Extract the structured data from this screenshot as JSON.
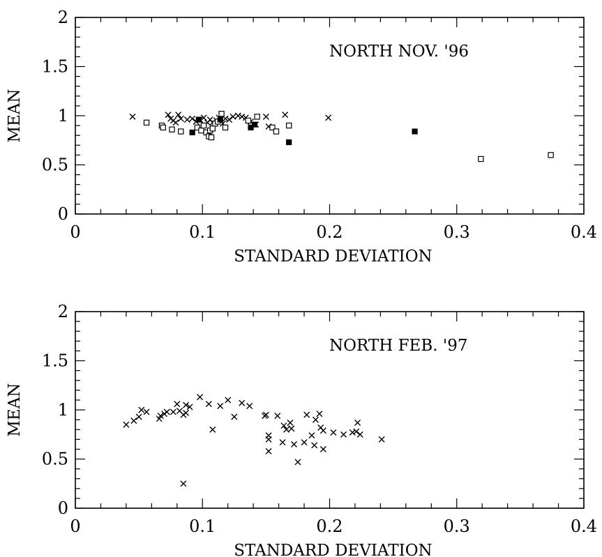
{
  "chart_data": [
    {
      "type": "scatter",
      "annotation": "NORTH NOV. '96",
      "xlabel": "STANDARD DEVIATION",
      "ylabel": "MEAN",
      "xlim": [
        0,
        0.4
      ],
      "ylim": [
        0,
        2
      ],
      "xticks": [
        "0",
        "0.1",
        "0.2",
        "0.3",
        "0.4"
      ],
      "yticks": [
        "0",
        "0.5",
        "1",
        "1.5",
        "2"
      ],
      "grid": false,
      "series": [
        {
          "marker": "cross",
          "points": [
            [
              0.045,
              0.99
            ],
            [
              0.073,
              1.01
            ],
            [
              0.075,
              0.97
            ],
            [
              0.077,
              0.95
            ],
            [
              0.079,
              0.93
            ],
            [
              0.081,
              1.01
            ],
            [
              0.083,
              0.97
            ],
            [
              0.088,
              0.96
            ],
            [
              0.092,
              0.97
            ],
            [
              0.095,
              0.94
            ],
            [
              0.098,
              0.96
            ],
            [
              0.101,
              0.98
            ],
            [
              0.104,
              0.93
            ],
            [
              0.106,
              0.96
            ],
            [
              0.108,
              0.93
            ],
            [
              0.111,
              0.95
            ],
            [
              0.113,
              0.98
            ],
            [
              0.116,
              0.92
            ],
            [
              0.118,
              0.97
            ],
            [
              0.121,
              0.96
            ],
            [
              0.124,
              0.99
            ],
            [
              0.128,
              1.0
            ],
            [
              0.131,
              0.99
            ],
            [
              0.134,
              0.98
            ],
            [
              0.138,
              0.94
            ],
            [
              0.142,
              0.91
            ],
            [
              0.15,
              0.99
            ],
            [
              0.152,
              0.89
            ],
            [
              0.165,
              1.01
            ],
            [
              0.199,
              0.98
            ]
          ]
        },
        {
          "marker": "open-square",
          "points": [
            [
              0.056,
              0.93
            ],
            [
              0.068,
              0.9
            ],
            [
              0.069,
              0.88
            ],
            [
              0.076,
              0.86
            ],
            [
              0.083,
              0.84
            ],
            [
              0.096,
              0.88
            ],
            [
              0.099,
              0.85
            ],
            [
              0.101,
              0.9
            ],
            [
              0.103,
              0.83
            ],
            [
              0.105,
              0.79
            ],
            [
              0.106,
              0.85
            ],
            [
              0.107,
              0.78
            ],
            [
              0.108,
              0.87
            ],
            [
              0.11,
              0.92
            ],
            [
              0.112,
              0.94
            ],
            [
              0.115,
              1.02
            ],
            [
              0.118,
              0.88
            ],
            [
              0.136,
              0.95
            ],
            [
              0.143,
              0.99
            ],
            [
              0.155,
              0.88
            ],
            [
              0.158,
              0.84
            ],
            [
              0.168,
              0.9
            ],
            [
              0.319,
              0.56
            ],
            [
              0.374,
              0.6
            ]
          ]
        },
        {
          "marker": "filled-square",
          "points": [
            [
              0.092,
              0.83
            ],
            [
              0.097,
              0.96
            ],
            [
              0.114,
              0.96
            ],
            [
              0.138,
              0.88
            ],
            [
              0.141,
              0.91
            ],
            [
              0.168,
              0.73
            ],
            [
              0.267,
              0.84
            ]
          ]
        }
      ]
    },
    {
      "type": "scatter",
      "annotation": "NORTH FEB. '97",
      "xlabel": "STANDARD DEVIATION",
      "ylabel": "MEAN",
      "xlim": [
        0,
        0.4
      ],
      "ylim": [
        0,
        2
      ],
      "xticks": [
        "0",
        "0.1",
        "0.2",
        "0.3",
        "0.4"
      ],
      "yticks": [
        "0",
        "0.5",
        "1",
        "1.5",
        "2"
      ],
      "grid": false,
      "series": [
        {
          "marker": "cross",
          "points": [
            [
              0.04,
              0.85
            ],
            [
              0.046,
              0.89
            ],
            [
              0.05,
              0.93
            ],
            [
              0.052,
              1.0
            ],
            [
              0.056,
              0.98
            ],
            [
              0.066,
              0.91
            ],
            [
              0.067,
              0.94
            ],
            [
              0.07,
              0.96
            ],
            [
              0.072,
              0.98
            ],
            [
              0.077,
              0.98
            ],
            [
              0.08,
              1.06
            ],
            [
              0.082,
              0.99
            ],
            [
              0.085,
              0.95
            ],
            [
              0.087,
              0.97
            ],
            [
              0.087,
              1.05
            ],
            [
              0.09,
              1.03
            ],
            [
              0.085,
              0.25
            ],
            [
              0.098,
              1.13
            ],
            [
              0.105,
              1.06
            ],
            [
              0.108,
              0.8
            ],
            [
              0.114,
              1.04
            ],
            [
              0.12,
              1.1
            ],
            [
              0.125,
              0.93
            ],
            [
              0.131,
              1.07
            ],
            [
              0.137,
              1.04
            ],
            [
              0.149,
              0.94
            ],
            [
              0.15,
              0.95
            ],
            [
              0.152,
              0.74
            ],
            [
              0.152,
              0.7
            ],
            [
              0.152,
              0.58
            ],
            [
              0.159,
              0.94
            ],
            [
              0.163,
              0.67
            ],
            [
              0.164,
              0.84
            ],
            [
              0.166,
              0.8
            ],
            [
              0.169,
              0.87
            ],
            [
              0.17,
              0.81
            ],
            [
              0.172,
              0.65
            ],
            [
              0.175,
              0.47
            ],
            [
              0.18,
              0.67
            ],
            [
              0.182,
              0.95
            ],
            [
              0.186,
              0.74
            ],
            [
              0.188,
              0.64
            ],
            [
              0.189,
              0.9
            ],
            [
              0.192,
              0.96
            ],
            [
              0.193,
              0.82
            ],
            [
              0.195,
              0.79
            ],
            [
              0.195,
              0.6
            ],
            [
              0.203,
              0.77
            ],
            [
              0.211,
              0.75
            ],
            [
              0.218,
              0.77
            ],
            [
              0.221,
              0.78
            ],
            [
              0.222,
              0.87
            ],
            [
              0.224,
              0.75
            ],
            [
              0.241,
              0.7
            ]
          ]
        }
      ]
    }
  ]
}
